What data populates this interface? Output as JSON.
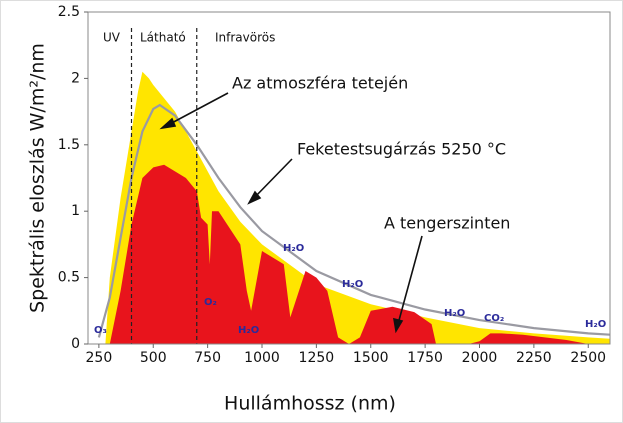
{
  "chart_data": {
    "type": "spectrum",
    "x_label": "Hullámhossz (nm)",
    "y_label": "Spektrális eloszlás W/m²/nm",
    "xlim": [
      200,
      2600
    ],
    "ylim": [
      0,
      2.5
    ],
    "xticks": [
      250,
      500,
      750,
      1000,
      1250,
      1500,
      1750,
      2000,
      2250,
      2500
    ],
    "yticks": [
      0,
      0.5,
      1,
      1.5,
      2,
      2.5
    ],
    "regions": [
      "UV",
      "Látható",
      "Infravörös"
    ],
    "region_boundaries": [
      400,
      700
    ],
    "series": [
      {
        "name": "Az atmoszféra tetején",
        "kind": "area",
        "color": "#ffe500",
        "x": [
          280,
          300,
          350,
          400,
          430,
          450,
          480,
          500,
          550,
          600,
          700,
          800,
          900,
          1000,
          1250,
          1500,
          1750,
          2000,
          2250,
          2500,
          2600
        ],
        "values": [
          0,
          0.5,
          1.1,
          1.6,
          1.9,
          2.05,
          2.0,
          1.95,
          1.85,
          1.75,
          1.45,
          1.15,
          0.92,
          0.75,
          0.45,
          0.3,
          0.2,
          0.12,
          0.08,
          0.05,
          0.04
        ]
      },
      {
        "name": "Feketestsugárzás 5250 °C",
        "kind": "line",
        "color": "#9a9aa2",
        "x": [
          250,
          300,
          350,
          400,
          450,
          500,
          530,
          600,
          700,
          800,
          900,
          1000,
          1250,
          1500,
          1750,
          2000,
          2250,
          2500,
          2600
        ],
        "values": [
          0.05,
          0.35,
          0.8,
          1.25,
          1.6,
          1.77,
          1.8,
          1.72,
          1.5,
          1.25,
          1.03,
          0.85,
          0.55,
          0.37,
          0.26,
          0.18,
          0.12,
          0.08,
          0.07
        ]
      },
      {
        "name": "A tengerszinten",
        "kind": "area",
        "color": "#e8141c",
        "x": [
          300,
          350,
          400,
          450,
          500,
          550,
          600,
          650,
          700,
          720,
          750,
          760,
          770,
          800,
          900,
          930,
          950,
          1000,
          1100,
          1130,
          1150,
          1200,
          1250,
          1300,
          1350,
          1400,
          1450,
          1500,
          1600,
          1700,
          1780,
          1800,
          1950,
          2000,
          2050,
          2100,
          2200,
          2300,
          2400,
          2500
        ],
        "values": [
          0,
          0.4,
          0.9,
          1.25,
          1.33,
          1.35,
          1.3,
          1.25,
          1.15,
          0.95,
          0.9,
          0.6,
          1.0,
          1.0,
          0.75,
          0.4,
          0.25,
          0.7,
          0.6,
          0.2,
          0.3,
          0.55,
          0.5,
          0.4,
          0.05,
          0,
          0.05,
          0.25,
          0.28,
          0.24,
          0.15,
          0,
          0,
          0.02,
          0.08,
          0.08,
          0.07,
          0.05,
          0.03,
          0
        ]
      }
    ],
    "absorbers": [
      "O₃",
      "O₂",
      "H₂O",
      "H₂O",
      "H₂O",
      "H₂O",
      "CO₂",
      "H₂O"
    ]
  }
}
